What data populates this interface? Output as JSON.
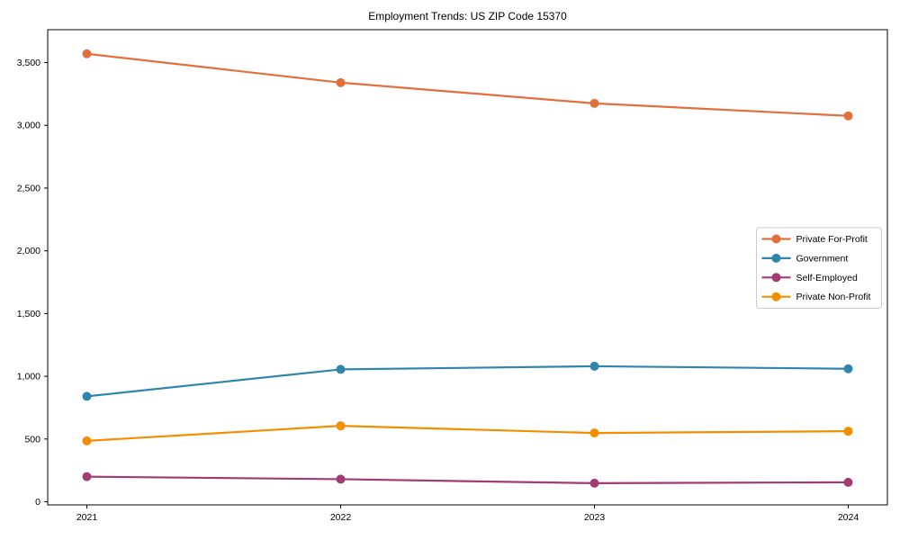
{
  "chart_data": {
    "type": "line",
    "title": "Employment Trends: US ZIP Code 15370",
    "categories": [
      "2021",
      "2022",
      "2023",
      "2024"
    ],
    "series": [
      {
        "name": "Private For-Profit",
        "color": "#E2703D",
        "values": [
          3570,
          3340,
          3175,
          3075
        ]
      },
      {
        "name": "Government",
        "color": "#2E86AB",
        "values": [
          840,
          1055,
          1080,
          1060
        ]
      },
      {
        "name": "Self-Employed",
        "color": "#A23B72",
        "values": [
          200,
          180,
          148,
          155
        ]
      },
      {
        "name": "Private Non-Profit",
        "color": "#F18F01",
        "values": [
          485,
          605,
          548,
          562
        ]
      }
    ],
    "xlabel": "",
    "ylabel": "",
    "ylim": [
      -25,
      3762
    ],
    "yticks": [
      0,
      500,
      1000,
      1500,
      2000,
      2500,
      3000,
      3500
    ],
    "ytick_labels": [
      "0",
      "500",
      "1,000",
      "1,500",
      "2,000",
      "2,500",
      "3,000",
      "3,500"
    ],
    "grid": false,
    "legend": {
      "position": "middle-right",
      "border_color": "#cccccc",
      "background": "#ffffff"
    },
    "axis_color": "#000000"
  }
}
